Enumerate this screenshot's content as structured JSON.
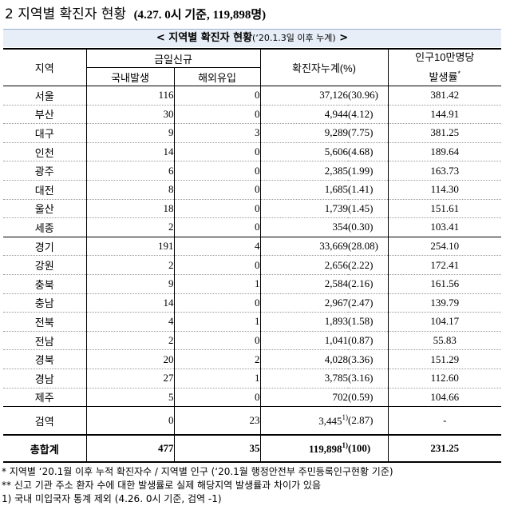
{
  "title": {
    "main": "2 지역별 확진자 현황",
    "sub": "(4.27. 0시 기준, 119,898명)"
  },
  "table_caption": {
    "text": "< 지역별 확진자 현황",
    "range": "(‘20.1.3일 이후 누계)",
    "suffix": " >"
  },
  "headers": {
    "region": "지역",
    "new_cases": "금일신규",
    "domestic": "국내발생",
    "overseas": "해외유입",
    "cumulative": "확진자누계(%)",
    "rate_line1": "인구10만명당",
    "rate_line2": "발생률",
    "rate_mark": "*"
  },
  "rows": [
    {
      "region": "서울",
      "domestic": "116",
      "overseas": "0",
      "cumulative": "37,126",
      "pct": "(30.96)",
      "rate": "381.42"
    },
    {
      "region": "부산",
      "domestic": "30",
      "overseas": "0",
      "cumulative": "4,944",
      "pct": "(4.12)",
      "rate": "144.91"
    },
    {
      "region": "대구",
      "domestic": "9",
      "overseas": "3",
      "cumulative": "9,289",
      "pct": "(7.75)",
      "rate": "381.25"
    },
    {
      "region": "인천",
      "domestic": "14",
      "overseas": "0",
      "cumulative": "5,606",
      "pct": "(4.68)",
      "rate": "189.64"
    },
    {
      "region": "광주",
      "domestic": "6",
      "overseas": "0",
      "cumulative": "2,385",
      "pct": "(1.99)",
      "rate": "163.73"
    },
    {
      "region": "대전",
      "domestic": "8",
      "overseas": "0",
      "cumulative": "1,685",
      "pct": "(1.41)",
      "rate": "114.30"
    },
    {
      "region": "울산",
      "domestic": "18",
      "overseas": "0",
      "cumulative": "1,739",
      "pct": "(1.45)",
      "rate": "151.61"
    },
    {
      "region": "세종",
      "domestic": "2",
      "overseas": "0",
      "cumulative": "354",
      "pct": "(0.30)",
      "rate": "103.41"
    },
    {
      "region": "경기",
      "domestic": "191",
      "overseas": "4",
      "cumulative": "33,669",
      "pct": "(28.08)",
      "rate": "254.10"
    },
    {
      "region": "강원",
      "domestic": "2",
      "overseas": "0",
      "cumulative": "2,656",
      "pct": "(2.22)",
      "rate": "172.41"
    },
    {
      "region": "충북",
      "domestic": "9",
      "overseas": "1",
      "cumulative": "2,584",
      "pct": "(2.16)",
      "rate": "161.56"
    },
    {
      "region": "충남",
      "domestic": "14",
      "overseas": "0",
      "cumulative": "2,967",
      "pct": "(2.47)",
      "rate": "139.79"
    },
    {
      "region": "전북",
      "domestic": "4",
      "overseas": "1",
      "cumulative": "1,893",
      "pct": "(1.58)",
      "rate": "104.17"
    },
    {
      "region": "전남",
      "domestic": "2",
      "overseas": "0",
      "cumulative": "1,041",
      "pct": "(0.87)",
      "rate": "55.83"
    },
    {
      "region": "경북",
      "domestic": "20",
      "overseas": "2",
      "cumulative": "4,028",
      "pct": "(3.36)",
      "rate": "151.29"
    },
    {
      "region": "경남",
      "domestic": "27",
      "overseas": "1",
      "cumulative": "3,785",
      "pct": "(3.16)",
      "rate": "112.60"
    },
    {
      "region": "제주",
      "domestic": "5",
      "overseas": "0",
      "cumulative": "702",
      "pct": "(0.59)",
      "rate": "104.66"
    }
  ],
  "quarantine": {
    "region": "검역",
    "domestic": "0",
    "overseas": "23",
    "cumulative": "3,445",
    "mark": "1)",
    "pct": "(2.87)",
    "rate": "-"
  },
  "total": {
    "region": "총합계",
    "domestic": "477",
    "overseas": "35",
    "cumulative": "119,898",
    "mark": "1)",
    "pct": "(100)",
    "rate": "231.25"
  },
  "notes": [
    " * 지역별 ‘20.1월 이후 누적 확진자수 / 지역별 인구 (‘20.1월 행정안전부 주민등록인구현황 기준)",
    "** 신고 기관 주소 환자 수에 대한 발생률로 실제 해당지역 발생률과 차이가 있음",
    "1) 국내 미입국자 통계 제외 (4.26. 0시 기준, 검역 -1)"
  ]
}
